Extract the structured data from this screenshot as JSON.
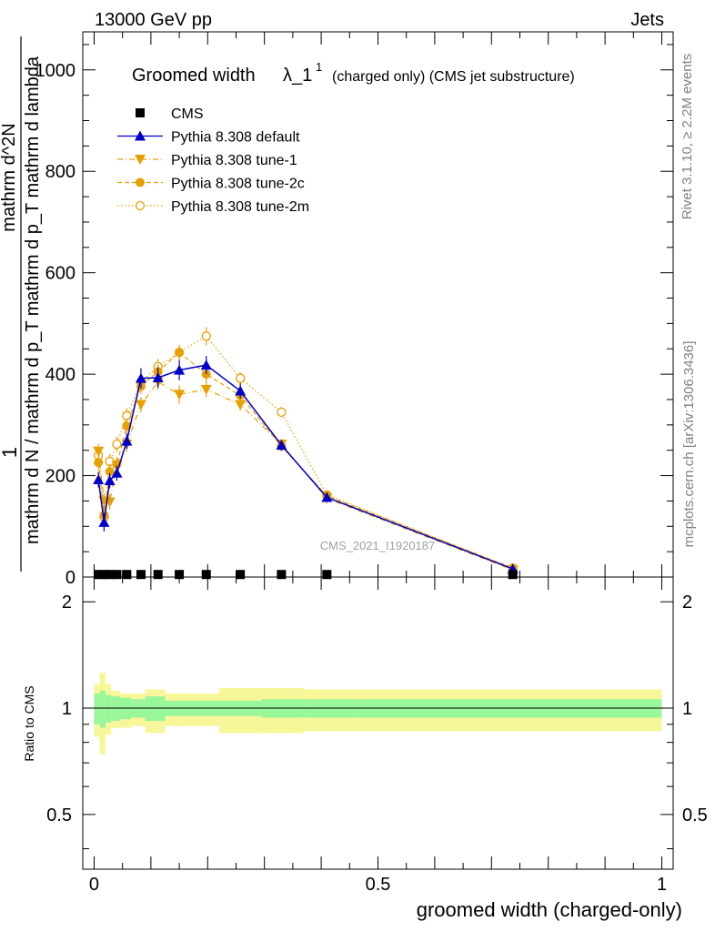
{
  "header": {
    "energy_label": "13000 GeV pp",
    "process_label": "Jets"
  },
  "side_labels": {
    "rivet": "Rivet 3.1.10, ≥ 2.2M events",
    "mcplots": "mcplots.cern.ch [arXiv:1306.3436]"
  },
  "watermark": "CMS_2021_I1920187",
  "colors": {
    "pythia_default": "#0000cc",
    "pythia_tunes": "#e8a000",
    "band_inner": "#99f799",
    "band_outer": "#f7f799",
    "cms": "#000000"
  },
  "chart_data": [
    {
      "type": "line",
      "title_main": "Groomed width",
      "title_sym": "λ_1",
      "title_sup": "1",
      "title_rest": "(charged only) (CMS jet substructure)",
      "ylabel_top": "1",
      "ylabel_num": "mathrm d^2N",
      "ylabel_den": "mathrm d N / mathrm d p_T mathrm d p_T mathrm d lambda",
      "xlim": [
        -0.02,
        1.02
      ],
      "ylim": [
        0,
        1075
      ],
      "yticks": [
        0,
        200,
        400,
        600,
        800,
        1000
      ],
      "ytick_labels": [
        "0",
        "200",
        "400",
        "600",
        "800",
        "1000"
      ],
      "legend_position": "top-left",
      "x": [
        0.0075,
        0.0175,
        0.0275,
        0.04,
        0.0575,
        0.0825,
        0.1125,
        0.15,
        0.1975,
        0.2575,
        0.33,
        0.41,
        0.7375
      ],
      "series": [
        {
          "name": "CMS",
          "marker": "square",
          "values": [
            5,
            5,
            5,
            5,
            5,
            5,
            5,
            5,
            5,
            5,
            5,
            5,
            5
          ]
        },
        {
          "name": "Pythia 8.308 default",
          "marker": "triangle-up",
          "line": "solid",
          "values": [
            192,
            108,
            190,
            205,
            268,
            392,
            393,
            408,
            418,
            367,
            260,
            157,
            16
          ],
          "errors": [
            15,
            18,
            15,
            15,
            15,
            20,
            20,
            20,
            18,
            15,
            10,
            8,
            3
          ]
        },
        {
          "name": "Pythia 8.308 tune-1",
          "marker": "triangle-down",
          "line": "dash-dot",
          "values": [
            248,
            150,
            148,
            220,
            262,
            340,
            385,
            360,
            370,
            340,
            262,
            155,
            14
          ],
          "errors": [
            15,
            15,
            15,
            15,
            15,
            15,
            15,
            18,
            15,
            12,
            10,
            8,
            3
          ]
        },
        {
          "name": "Pythia 8.308 tune-2c",
          "marker": "circle",
          "line": "dashed",
          "values": [
            226,
            122,
            208,
            222,
            298,
            376,
            405,
            443,
            400,
            358,
            258,
            160,
            18
          ],
          "errors": [
            15,
            15,
            15,
            15,
            15,
            15,
            15,
            15,
            15,
            12,
            10,
            8,
            3
          ]
        },
        {
          "name": "Pythia 8.308 tune-2m",
          "marker": "circle-open",
          "line": "dotted",
          "values": [
            240,
            118,
            228,
            262,
            318,
            385,
            415,
            443,
            475,
            392,
            325,
            162,
            17
          ],
          "errors": [
            15,
            15,
            15,
            15,
            15,
            15,
            15,
            15,
            18,
            12,
            10,
            8,
            3
          ]
        }
      ]
    },
    {
      "type": "line",
      "ylabel": "Ratio to CMS",
      "xlabel": "groomed width (charged-only)",
      "xlim": [
        -0.02,
        1.02
      ],
      "ylim": [
        0.35,
        2.35
      ],
      "yticks": [
        0.5,
        1,
        2
      ],
      "ytick_labels": [
        "0.5",
        "1",
        "2"
      ],
      "xticks": [
        0,
        0.5,
        1
      ],
      "xtick_labels": [
        "0",
        "0.5",
        "1"
      ],
      "reference": 1,
      "bin_edges": [
        0,
        0.01,
        0.02,
        0.03,
        0.045,
        0.065,
        0.09,
        0.125,
        0.175,
        0.22,
        0.295,
        0.37,
        0.455,
        1.0
      ],
      "band_inner_low": [
        0.9,
        0.88,
        0.91,
        0.92,
        0.93,
        0.94,
        0.92,
        0.95,
        0.95,
        0.95,
        0.94,
        0.94,
        0.94
      ],
      "band_inner_high": [
        1.1,
        1.12,
        1.09,
        1.08,
        1.07,
        1.06,
        1.08,
        1.05,
        1.05,
        1.05,
        1.06,
        1.06,
        1.06
      ],
      "band_outer_low": [
        0.83,
        0.74,
        0.84,
        0.88,
        0.88,
        0.89,
        0.85,
        0.89,
        0.89,
        0.85,
        0.85,
        0.86,
        0.86
      ],
      "band_outer_high": [
        1.17,
        1.26,
        1.17,
        1.12,
        1.1,
        1.1,
        1.13,
        1.1,
        1.1,
        1.14,
        1.14,
        1.13,
        1.13
      ]
    }
  ]
}
